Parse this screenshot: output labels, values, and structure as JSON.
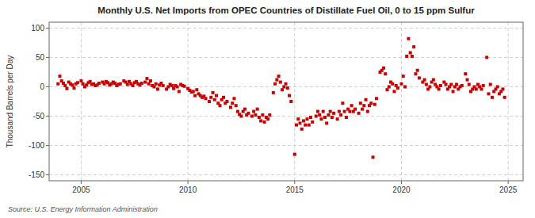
{
  "chart_data": {
    "type": "scatter",
    "title": "Monthly U.S. Net Imports from OPEC Countries of Distillate Fuel Oil, 0 to 15 ppm Sulfur",
    "y_label": "Thousand Barrels per Day",
    "annotations": [
      "Source: U.S. Energy Information Administration"
    ],
    "color": "#cc0000",
    "marker": "square",
    "grid": true,
    "xlim": [
      2003.5,
      2025.7
    ],
    "ylim": [
      -160,
      110
    ],
    "xticks": [
      2005,
      2010,
      2015,
      2020,
      2025
    ],
    "yticks": [
      -150,
      -100,
      -50,
      0,
      50,
      100
    ],
    "x": [
      2003.917,
      2004.0,
      2004.083,
      2004.167,
      2004.25,
      2004.333,
      2004.417,
      2004.5,
      2004.583,
      2004.667,
      2004.75,
      2004.833,
      2005.0,
      2005.083,
      2005.167,
      2005.25,
      2005.333,
      2005.417,
      2005.5,
      2005.583,
      2005.667,
      2005.75,
      2005.833,
      2006.0,
      2006.083,
      2006.167,
      2006.25,
      2006.333,
      2006.417,
      2006.5,
      2006.583,
      2006.667,
      2006.75,
      2006.833,
      2007.0,
      2007.083,
      2007.167,
      2007.25,
      2007.333,
      2007.417,
      2007.5,
      2007.583,
      2007.667,
      2007.75,
      2007.833,
      2008.0,
      2008.083,
      2008.167,
      2008.25,
      2008.333,
      2008.417,
      2008.5,
      2008.583,
      2008.667,
      2008.75,
      2008.833,
      2009.0,
      2009.083,
      2009.167,
      2009.25,
      2009.333,
      2009.417,
      2009.5,
      2009.583,
      2009.667,
      2009.75,
      2009.833,
      2010.0,
      2010.083,
      2010.167,
      2010.25,
      2010.333,
      2010.417,
      2010.5,
      2010.583,
      2010.667,
      2010.75,
      2010.833,
      2011.0,
      2011.083,
      2011.167,
      2011.25,
      2011.333,
      2011.417,
      2011.5,
      2011.583,
      2011.667,
      2011.75,
      2011.833,
      2012.0,
      2012.083,
      2012.167,
      2012.25,
      2012.333,
      2012.417,
      2012.5,
      2012.583,
      2012.667,
      2012.75,
      2012.833,
      2013.0,
      2013.083,
      2013.167,
      2013.25,
      2013.333,
      2013.417,
      2013.5,
      2013.583,
      2013.667,
      2013.75,
      2013.833,
      2014.0,
      2014.083,
      2014.167,
      2014.25,
      2014.333,
      2014.417,
      2014.5,
      2014.583,
      2014.667,
      2014.75,
      2014.833,
      2015.0,
      2015.083,
      2015.167,
      2015.25,
      2015.333,
      2015.417,
      2015.5,
      2015.583,
      2015.667,
      2015.75,
      2015.833,
      2016.0,
      2016.083,
      2016.167,
      2016.25,
      2016.333,
      2016.417,
      2016.5,
      2016.583,
      2016.667,
      2016.75,
      2016.833,
      2017.0,
      2017.083,
      2017.167,
      2017.25,
      2017.333,
      2017.417,
      2017.5,
      2017.583,
      2017.667,
      2017.75,
      2017.833,
      2018.0,
      2018.083,
      2018.167,
      2018.25,
      2018.333,
      2018.417,
      2018.5,
      2018.583,
      2018.667,
      2018.75,
      2018.833,
      2019.0,
      2019.083,
      2019.167,
      2019.25,
      2019.333,
      2019.417,
      2019.5,
      2019.583,
      2019.667,
      2019.75,
      2019.833,
      2020.0,
      2020.083,
      2020.167,
      2020.25,
      2020.333,
      2020.417,
      2020.5,
      2020.583,
      2020.667,
      2020.75,
      2020.833,
      2021.0,
      2021.083,
      2021.167,
      2021.25,
      2021.333,
      2021.417,
      2021.5,
      2021.583,
      2021.667,
      2021.75,
      2021.833,
      2022.0,
      2022.083,
      2022.167,
      2022.25,
      2022.333,
      2022.417,
      2022.5,
      2022.583,
      2022.667,
      2022.75,
      2022.833,
      2023.0,
      2023.083,
      2023.167,
      2023.25,
      2023.333,
      2023.417,
      2023.5,
      2023.583,
      2023.667,
      2023.75,
      2023.833,
      2024.0,
      2024.083,
      2024.167,
      2024.25,
      2024.333,
      2024.417,
      2024.5,
      2024.583,
      2024.667,
      2024.75,
      2024.833
    ],
    "values": [
      5,
      18,
      10,
      6,
      2,
      -3,
      8,
      5,
      3,
      -2,
      5,
      7,
      10,
      5,
      0,
      3,
      7,
      9,
      4,
      5,
      2,
      3,
      6,
      8,
      5,
      9,
      7,
      3,
      5,
      8,
      6,
      2,
      4,
      5,
      10,
      8,
      4,
      9,
      5,
      2,
      7,
      9,
      5,
      3,
      6,
      8,
      14,
      5,
      10,
      2,
      0,
      5,
      -4,
      3,
      6,
      2,
      -4,
      0,
      4,
      2,
      -3,
      2,
      0,
      -8,
      4,
      2,
      1,
      -3,
      -6,
      -9,
      -8,
      -15,
      -5,
      -12,
      -15,
      -18,
      -16,
      -20,
      -25,
      -18,
      -10,
      -22,
      -15,
      -28,
      -32,
      -22,
      -18,
      -28,
      -25,
      -35,
      -28,
      -20,
      -32,
      -42,
      -47,
      -50,
      -42,
      -38,
      -48,
      -45,
      -50,
      -42,
      -48,
      -38,
      -52,
      -58,
      -48,
      -60,
      -52,
      -55,
      -48,
      -10,
      5,
      12,
      18,
      8,
      -5,
      0,
      5,
      -2,
      -15,
      -25,
      -115,
      -65,
      -55,
      -62,
      -72,
      -58,
      -65,
      -55,
      -65,
      -52,
      -60,
      -50,
      -42,
      -48,
      -55,
      -42,
      -52,
      -62,
      -48,
      -42,
      -52,
      -45,
      -55,
      -42,
      -48,
      -28,
      -42,
      -52,
      -38,
      -42,
      -32,
      -42,
      -38,
      -45,
      -28,
      -38,
      -32,
      -22,
      -42,
      -32,
      -28,
      -120,
      -30,
      -20,
      25,
      28,
      32,
      22,
      -5,
      0,
      8,
      5,
      -8,
      2,
      -2,
      5,
      18,
      0,
      52,
      82,
      58,
      52,
      68,
      22,
      28,
      15,
      8,
      12,
      4,
      -4,
      0,
      8,
      12,
      4,
      0,
      -4,
      2,
      8,
      4,
      -4,
      0,
      4,
      -8,
      0,
      4,
      -4,
      0,
      2,
      22,
      12,
      4,
      -8,
      -4,
      0,
      -4,
      4,
      0,
      -4,
      2,
      50,
      -12,
      4,
      -18,
      -8,
      -4,
      0,
      -12,
      -8,
      -4,
      -18
    ]
  }
}
